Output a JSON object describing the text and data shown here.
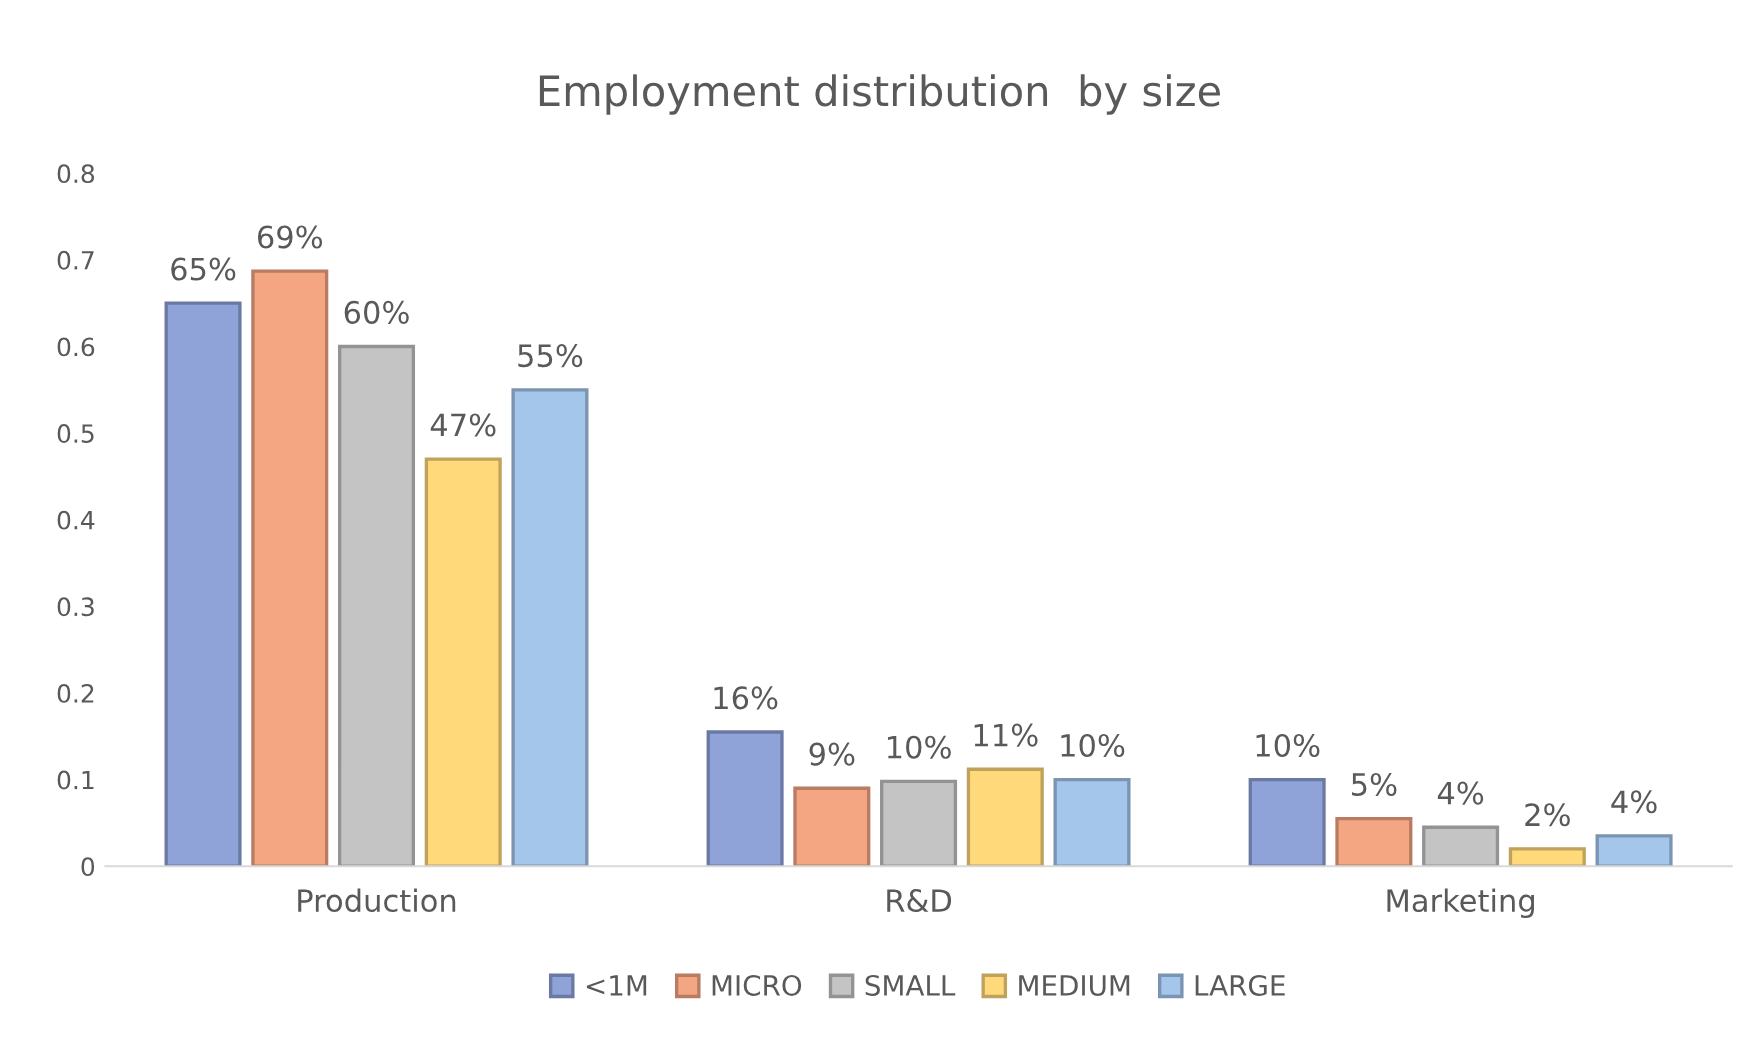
{
  "chart_data": {
    "type": "bar",
    "title": "Employment distribution  by size",
    "categories": [
      "Production",
      "R&D",
      "Marketing"
    ],
    "series": [
      {
        "name": "<1M",
        "color": "#8fa3d9",
        "values": [
          0.65,
          0.155,
          0.1
        ],
        "value_labels": [
          "65%",
          "16%",
          "10%"
        ]
      },
      {
        "name": "MICRO",
        "color": "#f4a582",
        "values": [
          0.687,
          0.09,
          0.055
        ],
        "value_labels": [
          "69%",
          "9%",
          "5%"
        ]
      },
      {
        "name": "SMALL",
        "color": "#c4c4c4",
        "values": [
          0.6,
          0.098,
          0.045
        ],
        "value_labels": [
          "60%",
          "10%",
          "4%"
        ]
      },
      {
        "name": "MEDIUM",
        "color": "#ffd97a",
        "values": [
          0.47,
          0.112,
          0.02
        ],
        "value_labels": [
          "47%",
          "11%",
          "2%"
        ]
      },
      {
        "name": "LARGE",
        "color": "#a4c6ea",
        "values": [
          0.55,
          0.1,
          0.035
        ],
        "value_labels": [
          "55%",
          "10%",
          "4%"
        ]
      }
    ],
    "ylim": [
      0,
      0.8
    ],
    "yticks": [
      0,
      0.1,
      0.2,
      0.3,
      0.4,
      0.5,
      0.6,
      0.7,
      0.8
    ],
    "grid": false,
    "legend": "bottom"
  }
}
